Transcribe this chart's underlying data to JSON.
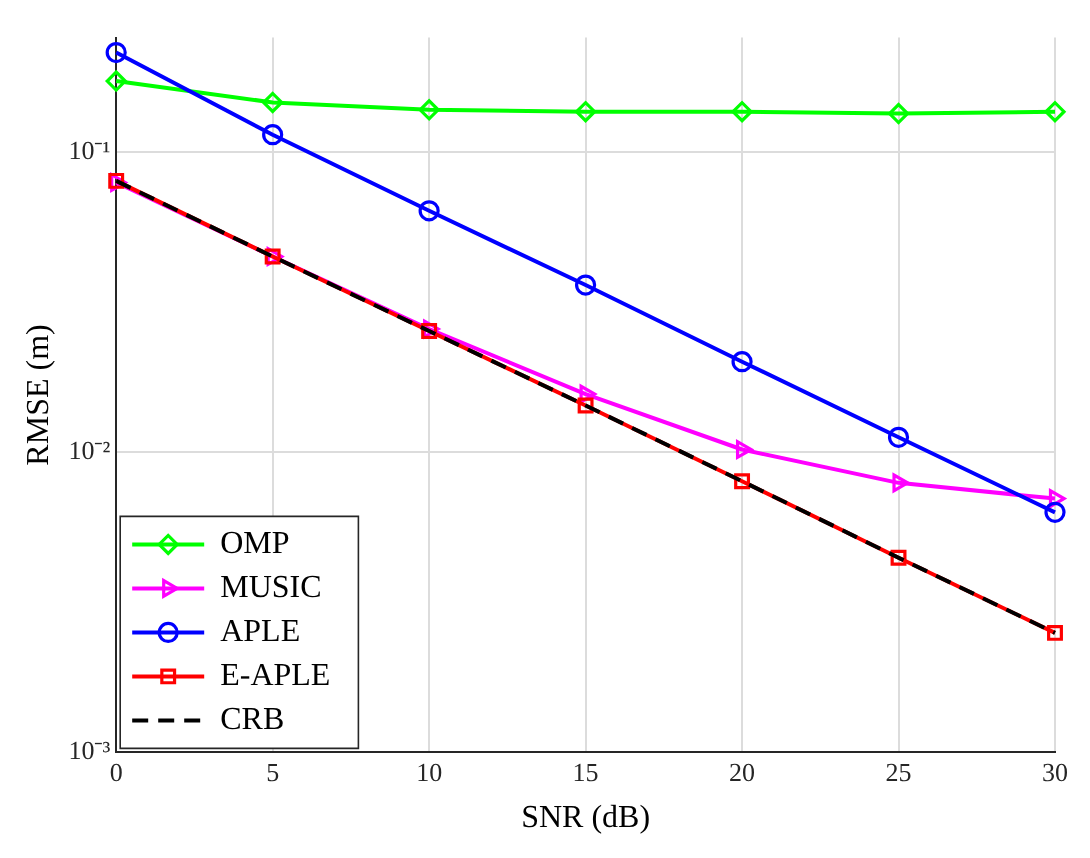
{
  "chart_data": {
    "type": "line",
    "xlabel": "SNR (dB)",
    "ylabel": "RMSE (m)",
    "x": [
      0,
      5,
      10,
      15,
      20,
      25,
      30
    ],
    "series": [
      {
        "name": "OMP",
        "color": "#00ff00",
        "marker": "diamond",
        "line_style": "solid",
        "values": [
          0.172,
          0.146,
          0.138,
          0.136,
          0.136,
          0.134,
          0.136
        ]
      },
      {
        "name": "MUSIC",
        "color": "#ff00ff",
        "marker": "triangle",
        "line_style": "solid",
        "values": [
          0.079,
          0.0448,
          0.0257,
          0.0156,
          0.0102,
          0.0079,
          0.007
        ]
      },
      {
        "name": "APLE",
        "color": "#0000ff",
        "marker": "circle",
        "line_style": "solid",
        "values": [
          0.214,
          0.114,
          0.0636,
          0.036,
          0.02,
          0.0112,
          0.0063
        ]
      },
      {
        "name": "E-APLE",
        "color": "#ff0000",
        "marker": "square",
        "line_style": "solid",
        "values": [
          0.08,
          0.0448,
          0.0253,
          0.0143,
          0.008,
          0.00445,
          0.0025
        ]
      },
      {
        "name": "CRB",
        "color": "#000000",
        "marker": "none",
        "line_style": "dashed",
        "values": [
          0.08,
          0.0448,
          0.0253,
          0.0143,
          0.008,
          0.00445,
          0.0025
        ]
      }
    ],
    "log": "y",
    "xlim": [
      0,
      30
    ],
    "xticks": [
      0,
      5,
      10,
      15,
      20,
      25,
      30
    ],
    "ylim": [
      0.001,
      0.24
    ],
    "yticks": [
      {
        "value": 0.001,
        "label": "10⁻³"
      },
      {
        "value": 0.01,
        "label": "10⁻²"
      },
      {
        "value": 0.1,
        "label": "10⁻¹"
      }
    ],
    "grid": true,
    "legend": "bottom left"
  }
}
